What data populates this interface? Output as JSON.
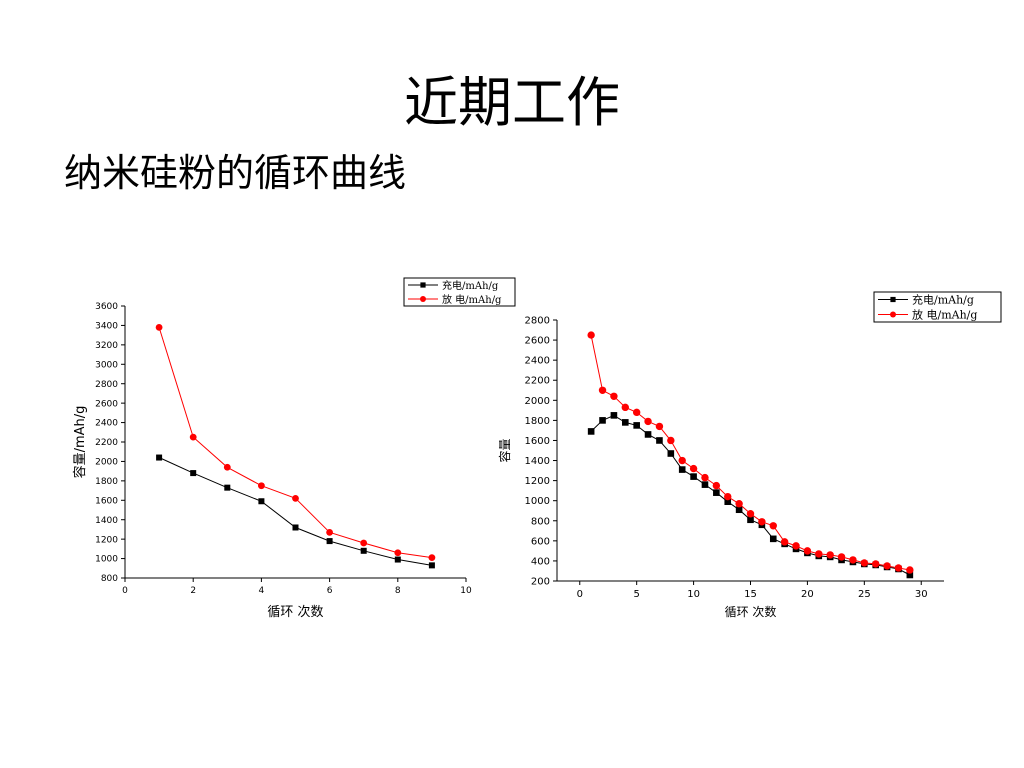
{
  "slide": {
    "title": "近期工作",
    "subtitle": "纳米硅粉的循环曲线"
  },
  "chart_data": [
    {
      "type": "line",
      "xlabel": "循环 次数",
      "ylabel": "容量/mAh/g",
      "xlim": [
        0,
        10
      ],
      "ylim": [
        800,
        3600
      ],
      "xticks": [
        0,
        2,
        4,
        6,
        8,
        10
      ],
      "yticks": [
        800,
        1000,
        1200,
        1400,
        1600,
        1800,
        2000,
        2200,
        2400,
        2600,
        2800,
        3000,
        3200,
        3400,
        3600
      ],
      "grid": false,
      "legend_position": "top-right",
      "x": [
        1,
        2,
        3,
        4,
        5,
        6,
        7,
        8,
        9
      ],
      "series": [
        {
          "name": "充电/mAh/g",
          "color": "#000000",
          "marker": "square",
          "values": [
            2040,
            1880,
            1730,
            1590,
            1320,
            1180,
            1080,
            990,
            930
          ]
        },
        {
          "name": "放 电/mAh/g",
          "color": "#ff0000",
          "marker": "circle",
          "values": [
            3380,
            2250,
            1940,
            1750,
            1620,
            1270,
            1160,
            1060,
            1010
          ]
        }
      ]
    },
    {
      "type": "line",
      "xlabel": "循环 次数",
      "ylabel": "容量",
      "xlim": [
        -2,
        32
      ],
      "ylim": [
        200,
        2800
      ],
      "xticks": [
        0,
        5,
        10,
        15,
        20,
        25,
        30
      ],
      "yticks": [
        200,
        400,
        600,
        800,
        1000,
        1200,
        1400,
        1600,
        1800,
        2000,
        2200,
        2400,
        2600,
        2800
      ],
      "grid": false,
      "legend_position": "top-right",
      "x": [
        1,
        2,
        3,
        4,
        5,
        6,
        7,
        8,
        9,
        10,
        11,
        12,
        13,
        14,
        15,
        16,
        17,
        18,
        19,
        20,
        21,
        22,
        23,
        24,
        25,
        26,
        27,
        28,
        29
      ],
      "series": [
        {
          "name": "充电/mAh/g",
          "color": "#000000",
          "marker": "square",
          "values": [
            1690,
            1800,
            1850,
            1780,
            1750,
            1660,
            1600,
            1470,
            1310,
            1240,
            1160,
            1080,
            990,
            910,
            810,
            760,
            620,
            570,
            520,
            480,
            450,
            440,
            410,
            390,
            370,
            360,
            340,
            320,
            260
          ]
        },
        {
          "name": "放 电/mAh/g",
          "color": "#ff0000",
          "marker": "circle",
          "values": [
            2650,
            2100,
            2040,
            1930,
            1880,
            1790,
            1740,
            1600,
            1400,
            1320,
            1230,
            1150,
            1040,
            970,
            870,
            790,
            750,
            590,
            550,
            500,
            470,
            460,
            440,
            410,
            380,
            370,
            350,
            330,
            310
          ]
        }
      ]
    }
  ]
}
